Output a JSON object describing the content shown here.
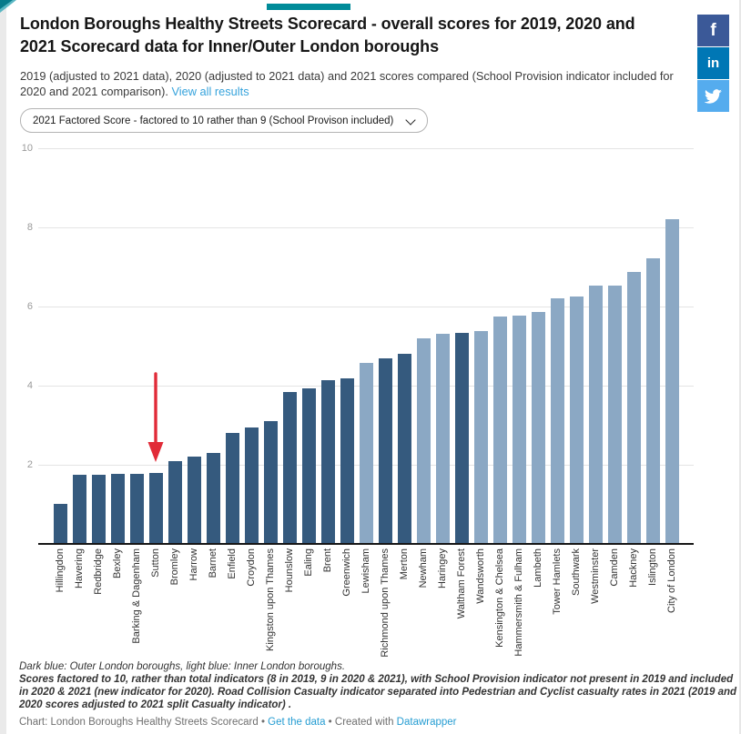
{
  "page": {
    "background": "#ffffff",
    "accent_teal": "#008B99",
    "left_strip_color": "#EAEAEA",
    "corner_dark_teal": "#067A8A",
    "corner_light_teal": "#5AB7C3"
  },
  "header": {
    "title": "London Boroughs Healthy Streets Scorecard - overall scores for 2019, 2020 and 2021 Scorecard data for Inner/Outer London boroughs",
    "description": "2019 (adjusted to 2021 data), 2020 (adjusted to 2021 data) and 2021 scores compared (School Provision indicator included for 2020 and 2021 comparison).",
    "view_all_label": "View all results",
    "link_color": "#36A3DC"
  },
  "controls": {
    "selected_option": "2021 Factored Score - factored to 10 rather than 9 (School Provison included)"
  },
  "social_buttons": [
    {
      "name": "facebook",
      "glyph": "f",
      "color": "#3B5998"
    },
    {
      "name": "linkedin",
      "glyph": "in",
      "color": "#0077B5"
    },
    {
      "name": "twitter",
      "glyph": "twitter-bird",
      "color": "#55ACEE"
    }
  ],
  "chart_data": {
    "type": "bar",
    "title": "London Boroughs Healthy Streets Scorecard - overall scores for 2019, 2020 and 2021 Scorecard data for Inner/Outer London boroughs",
    "xlabel": "",
    "ylabel": "",
    "ylim": [
      0,
      10
    ],
    "yticks": [
      2,
      4,
      6,
      8,
      10
    ],
    "grid": true,
    "categories": [
      "Hillingdon",
      "Havering",
      "Redbridge",
      "Bexley",
      "Barking & Dagenham",
      "Sutton",
      "Bromley",
      "Harrow",
      "Barnet",
      "Enfield",
      "Croydon",
      "Kingston upon Thames",
      "Hounslow",
      "Ealing",
      "Brent",
      "Greenwich",
      "Lewisham",
      "Richmond upon Thames",
      "Merton",
      "Newham",
      "Haringey",
      "Waltham Forest",
      "Wandsworth",
      "Kensington & Chelsea",
      "Hammersmith & Fulham",
      "Lambeth",
      "Tower Hamlets",
      "Southwark",
      "Westminster",
      "Camden",
      "Hackney",
      "Islington",
      "City of London"
    ],
    "values": [
      1.02,
      1.74,
      1.74,
      1.78,
      1.78,
      1.8,
      2.1,
      2.2,
      2.3,
      2.8,
      2.95,
      3.1,
      3.84,
      3.93,
      4.14,
      4.18,
      4.57,
      4.7,
      4.8,
      5.2,
      5.3,
      5.33,
      5.38,
      5.74,
      5.76,
      5.86,
      6.21,
      6.26,
      6.52,
      6.52,
      6.87,
      7.21,
      8.21
    ],
    "group_of_bar": [
      "outer",
      "outer",
      "outer",
      "outer",
      "outer",
      "outer",
      "outer",
      "outer",
      "outer",
      "outer",
      "outer",
      "outer",
      "outer",
      "outer",
      "outer",
      "outer",
      "inner",
      "outer",
      "outer",
      "inner",
      "inner",
      "outer",
      "inner",
      "inner",
      "inner",
      "inner",
      "inner",
      "inner",
      "inner",
      "inner",
      "inner",
      "inner",
      "inner"
    ],
    "group_colors": {
      "outer": "#355A7E",
      "inner": "#8BA8C4"
    },
    "annotation": {
      "type": "arrow",
      "target_category": "Sutton",
      "color": "#E12B38"
    }
  },
  "footer": {
    "note_line1": "Dark blue: Outer London boroughs, light blue: Inner London boroughs.",
    "note_line2": "Scores factored to 10, rather than total indicators (8 in 2019, 9 in 2020 & 2021), with School Provision indicator not present in 2019 and included in 2020 & 2021 (new indicator for 2020). Road Collision Casualty indicator separated into Pedestrian and Cyclist casualty rates in 2021 (2019 and 2020 scores adjusted to 2021 split Casualty indicator) .",
    "chart_credit": "Chart: London Boroughs Healthy Streets Scorecard",
    "separator": "•",
    "get_data_label": "Get the data",
    "created_with": "Created with",
    "datawrapper_label": "Datawrapper",
    "link_color": "#249CD2"
  }
}
